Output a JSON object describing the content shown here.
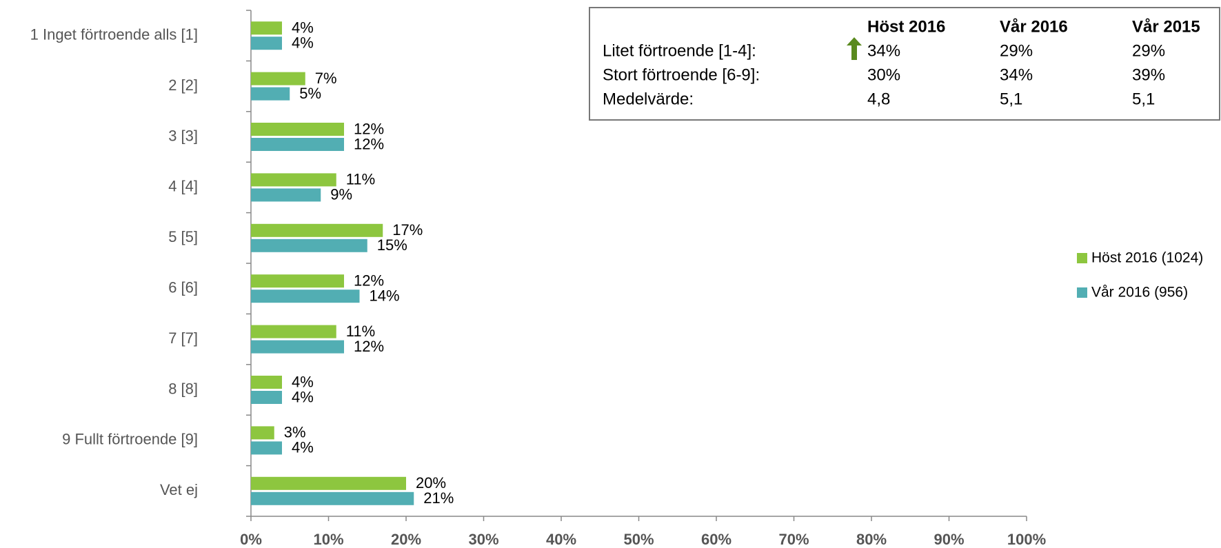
{
  "chart_data": {
    "type": "bar",
    "orientation": "horizontal",
    "categories": [
      "1 Inget förtroende alls [1]",
      "2 [2]",
      "3 [3]",
      "4 [4]",
      "5 [5]",
      "6 [6]",
      "7 [7]",
      "8 [8]",
      "9 Fullt förtroende [9]",
      "Vet ej"
    ],
    "series": [
      {
        "name": "Höst 2016 (1024)",
        "color": "#8dc63f",
        "values": [
          4,
          7,
          12,
          11,
          17,
          12,
          11,
          4,
          3,
          20
        ],
        "value_labels": [
          "4%",
          "7%",
          "12%",
          "11%",
          "17%",
          "12%",
          "11%",
          "4%",
          "3%",
          "20%"
        ]
      },
      {
        "name": "Vår 2016 (956)",
        "color": "#52aeb3",
        "values": [
          4,
          5,
          12,
          9,
          15,
          14,
          12,
          4,
          4,
          21
        ],
        "value_labels": [
          "4%",
          "5%",
          "12%",
          "9%",
          "15%",
          "14%",
          "12%",
          "4%",
          "4%",
          "21%"
        ]
      }
    ],
    "xlim": [
      0,
      100
    ],
    "xticks": [
      {
        "value": 0,
        "label": "0%"
      },
      {
        "value": 10,
        "label": "10%"
      },
      {
        "value": 20,
        "label": "20%"
      },
      {
        "value": 30,
        "label": "30%"
      },
      {
        "value": 40,
        "label": "40%"
      },
      {
        "value": 50,
        "label": "50%"
      },
      {
        "value": 60,
        "label": "60%"
      },
      {
        "value": 70,
        "label": "70%"
      },
      {
        "value": 80,
        "label": "80%"
      },
      {
        "value": 90,
        "label": "90%"
      },
      {
        "value": 100,
        "label": "100%"
      }
    ],
    "legend": "right",
    "summary_table": {
      "headers": [
        "Höst 2016",
        "Vår 2016",
        "Vår 2015"
      ],
      "rows": [
        [
          "Litet förtroende [1-4]:",
          "34%",
          "29%",
          "29%"
        ],
        [
          "Stort förtroende [6-9]:",
          "30%",
          "34%",
          "39%"
        ],
        [
          "Medelvärde:",
          "4,8",
          "5,1",
          "5,1"
        ]
      ]
    }
  }
}
